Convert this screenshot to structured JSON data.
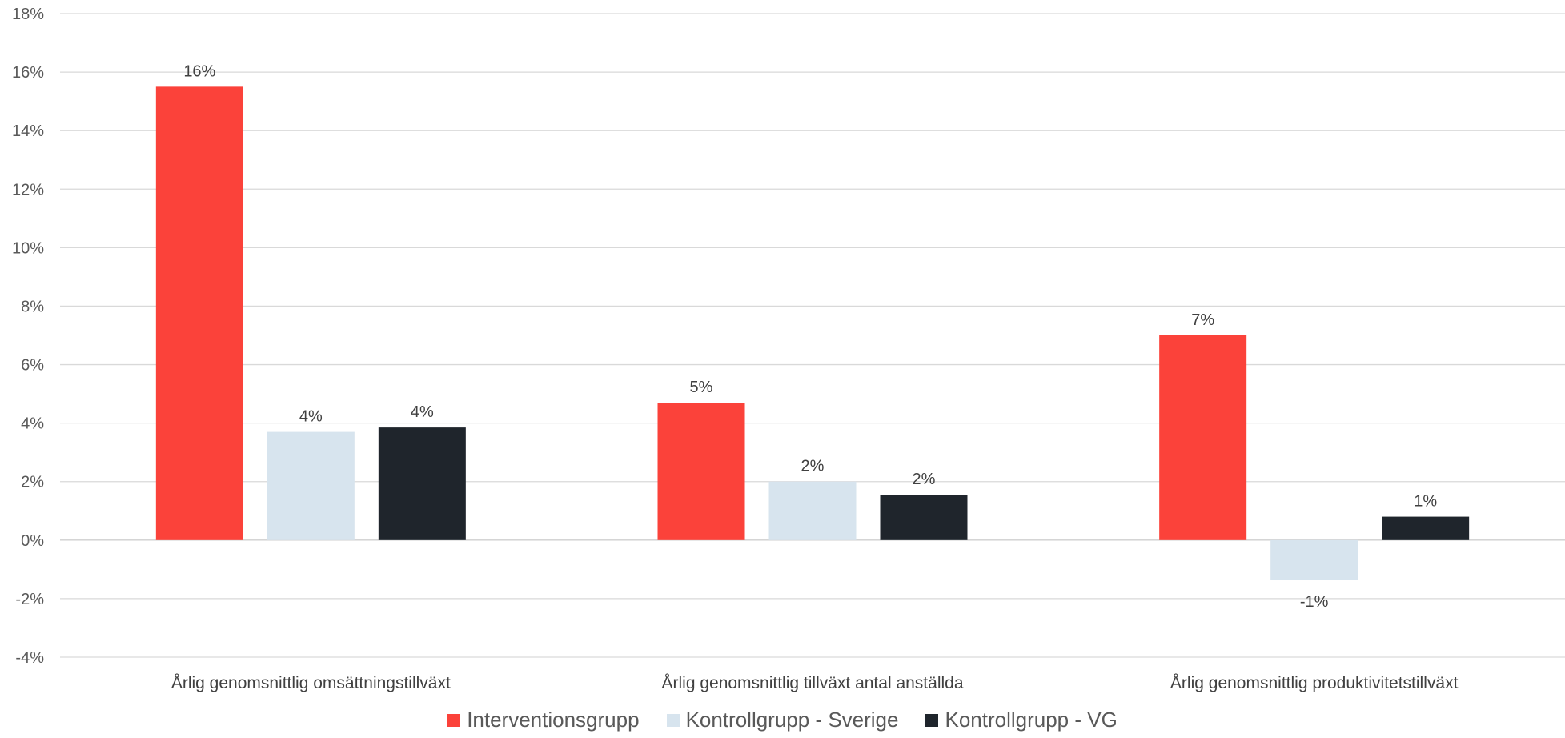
{
  "chart_data": {
    "type": "bar",
    "categories": [
      "Årlig genomsnittlig omsättningstillväxt",
      "Årlig genomsnittlig tillväxt antal anställda",
      "Årlig genomsnittlig produktivitetstillväxt"
    ],
    "series": [
      {
        "name": "Interventionsgrupp",
        "color": "#FB423A",
        "values": [
          15.5,
          4.7,
          7.0
        ],
        "labels": [
          "16%",
          "5%",
          "7%"
        ]
      },
      {
        "name": "Kontrollgrupp - Sverige",
        "color": "#D7E4EE",
        "values": [
          3.7,
          2.0,
          -1.35
        ],
        "labels": [
          "4%",
          "2%",
          "-1%"
        ]
      },
      {
        "name": "Kontrollgrupp - VG",
        "color": "#1F252C",
        "values": [
          3.85,
          1.55,
          0.8
        ],
        "labels": [
          "4%",
          "2%",
          "1%"
        ]
      }
    ],
    "ylim": [
      -4,
      18
    ],
    "yticks": [
      -4,
      -2,
      0,
      2,
      4,
      6,
      8,
      10,
      12,
      14,
      16,
      18
    ],
    "ytick_labels": [
      "-4%",
      "-2%",
      "0%",
      "2%",
      "4%",
      "6%",
      "8%",
      "10%",
      "12%",
      "14%",
      "16%",
      "18%"
    ],
    "grid": true,
    "legend_position": "bottom"
  }
}
